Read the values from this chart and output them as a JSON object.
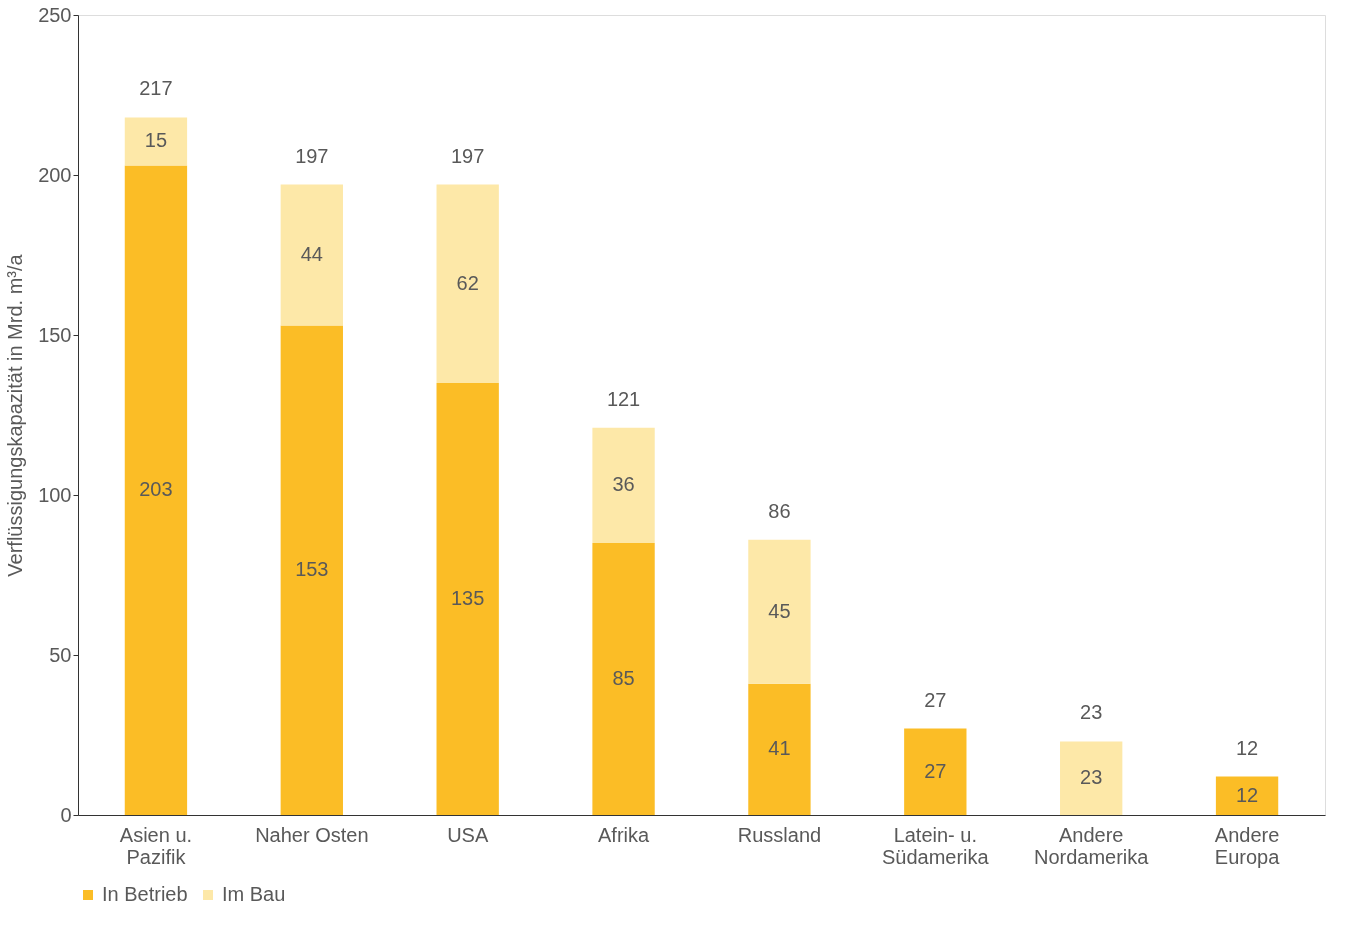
{
  "chart_data": {
    "type": "bar",
    "stacked": true,
    "ylabel": "Verflüssigungskapazität in Mrd. m³/a",
    "categories": [
      "Asien u.\nPazifik",
      "Naher Osten",
      "USA",
      "Afrika",
      "Russland",
      "Latein- u.\nSüdamerika",
      "Andere\nNordamerika",
      "Andere\nEuropa"
    ],
    "series": [
      {
        "name": "In Betrieb",
        "color": "#fbbd26",
        "values": [
          203,
          153,
          135,
          85,
          41,
          27,
          null,
          12
        ]
      },
      {
        "name": "Im Bau",
        "color": "#fde8a8",
        "values": [
          15,
          44,
          62,
          36,
          45,
          null,
          23,
          null
        ]
      }
    ],
    "totals": [
      "217",
      "197",
      "197",
      "121",
      "86",
      "27",
      "23",
      "12"
    ],
    "data_labels": true,
    "ylim": [
      0,
      250
    ],
    "yticks": [
      0,
      50,
      100,
      150,
      200,
      250
    ],
    "grid": false,
    "legend": "bottom"
  }
}
